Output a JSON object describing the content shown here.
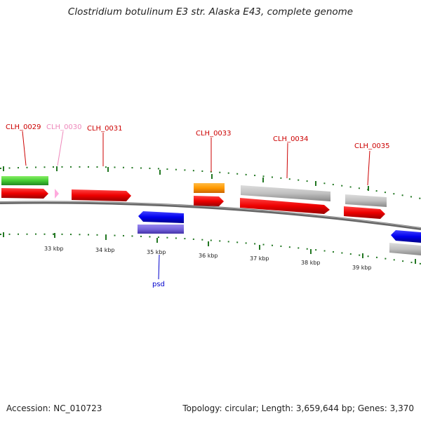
{
  "title": "Clostridium botulinum E3 str. Alaska E43, complete genome",
  "footer": {
    "accession": "Accession: NC_010723",
    "summary": "Topology: circular; Length: 3,659,644 bp; Genes: 3,370"
  },
  "ticks": [
    "33 kbp",
    "34 kbp",
    "35 kbp",
    "36 kbp",
    "37 kbp",
    "38 kbp",
    "39 kbp"
  ],
  "gene_labels": [
    {
      "name": "CLH_0029",
      "color": "#cc0000"
    },
    {
      "name": "CLH_0030",
      "color": "#ee88bb"
    },
    {
      "name": "CLH_0031",
      "color": "#cc0000"
    },
    {
      "name": "CLH_0033",
      "color": "#cc0000"
    },
    {
      "name": "CLH_0034",
      "color": "#cc0000"
    },
    {
      "name": "CLH_0035",
      "color": "#cc0000"
    },
    {
      "name": "psd",
      "color": "#0000cc"
    }
  ],
  "colors": {
    "forward_gene": "#ff0000",
    "reverse_gene": "#0000ff",
    "backbone": "#808080",
    "tick": "#227722",
    "feature_green": "#55cc44",
    "feature_orange": "#ff9900",
    "feature_gray": "#c0c0c0",
    "feature_purple": "#7766dd",
    "feature_pink": "#ffaadd"
  }
}
